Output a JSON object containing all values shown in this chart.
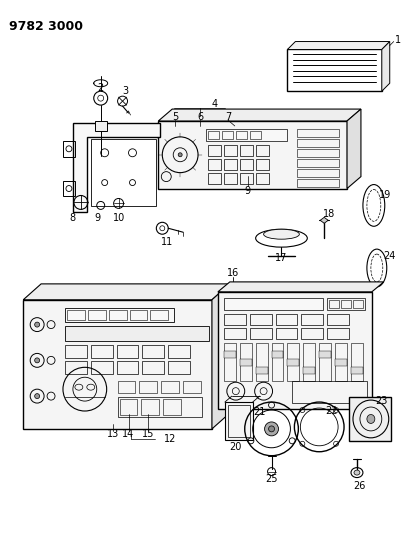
{
  "title": "9782 3000",
  "background_color": "#ffffff",
  "line_color": "#000000",
  "figsize": [
    4.1,
    5.33
  ],
  "dpi": 100
}
